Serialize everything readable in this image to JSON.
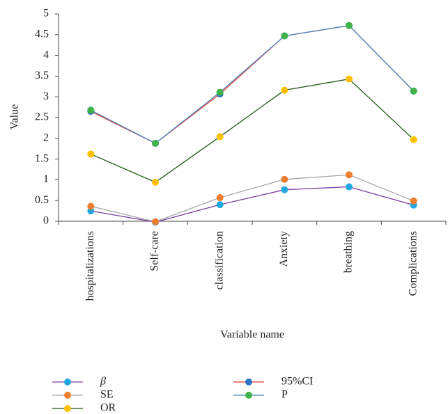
{
  "chart_data": {
    "type": "line",
    "x_label": "Variable name",
    "y_label": "Value",
    "categories": [
      "hospitalizations",
      "Self-care",
      "classification",
      "Anxiety",
      "breathing",
      "Complications"
    ],
    "series": [
      {
        "name": "β",
        "color": "#7b3fa0",
        "marker_color": "#22a7e0",
        "values": [
          0.25,
          -0.02,
          0.4,
          0.76,
          0.83,
          0.39
        ]
      },
      {
        "name": "SE",
        "color": "#a6a6a6",
        "marker_color": "#ed7d31",
        "values": [
          0.36,
          -0.01,
          0.57,
          1.01,
          1.12,
          0.49
        ]
      },
      {
        "name": "OR",
        "color": "#1e5a14",
        "marker_color": "#ffc000",
        "values": [
          1.62,
          0.94,
          2.04,
          3.16,
          3.43,
          1.97
        ]
      },
      {
        "name": "95%CI",
        "color": "#e03c31",
        "marker_color": "#2e74c0",
        "values": [
          2.65,
          1.88,
          3.07,
          4.47,
          4.72,
          3.14
        ]
      },
      {
        "name": "P",
        "color": "#4a86c0",
        "marker_color": "#3fb24a",
        "values": [
          2.68,
          1.88,
          3.11,
          4.47,
          4.72,
          3.14
        ]
      }
    ],
    "ylim": [
      0,
      5
    ],
    "yticks": [
      0,
      0.5,
      1,
      1.5,
      2,
      2.5,
      3,
      3.5,
      4,
      4.5,
      5
    ],
    "grid": false
  }
}
